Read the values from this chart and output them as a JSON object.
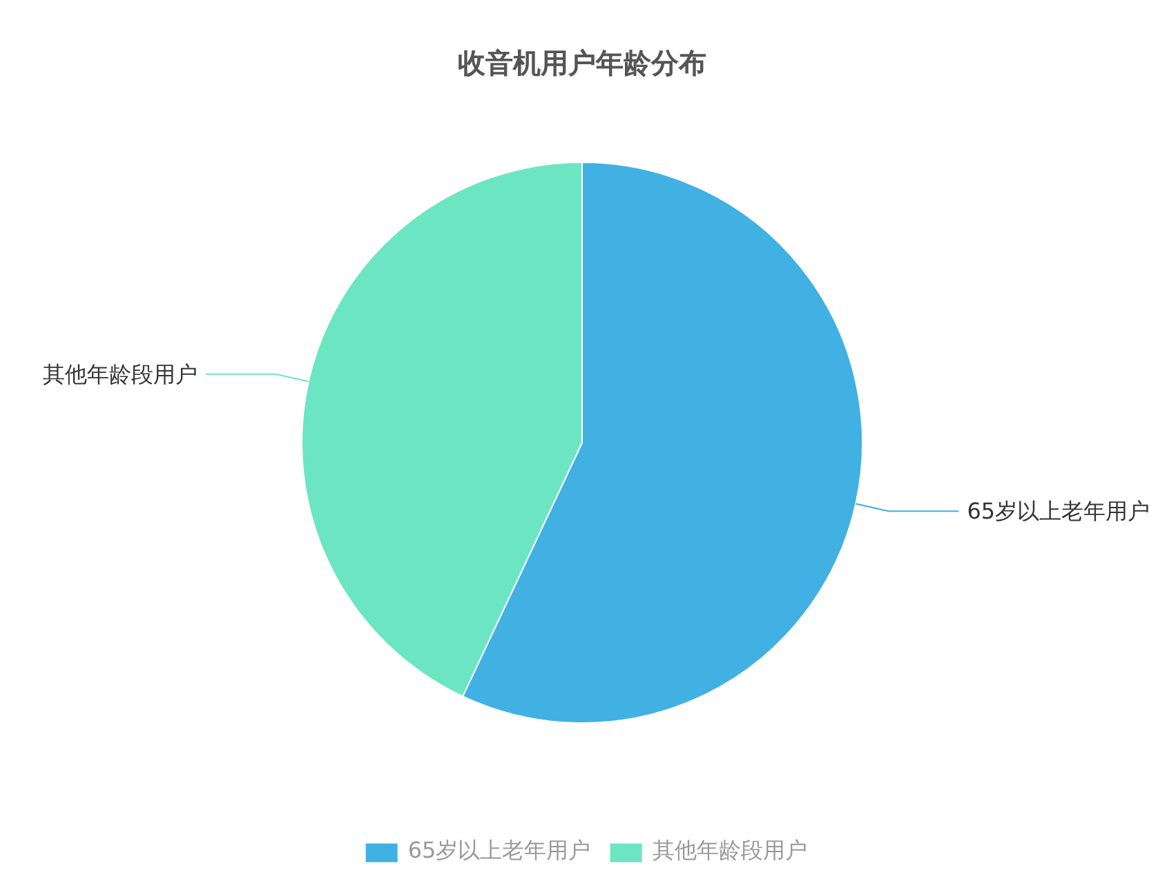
{
  "chart_data": {
    "type": "pie",
    "title": "收音机用户年龄分布",
    "categories": [
      "65岁以上老年用户",
      "其他年龄段用户"
    ],
    "values": [
      57,
      43
    ],
    "colors": [
      "#41b0e2",
      "#6ce5c2"
    ],
    "legend": "bottom"
  }
}
